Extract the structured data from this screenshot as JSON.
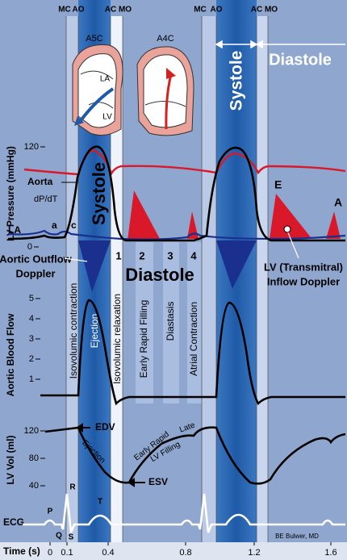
{
  "markers": [
    "MC",
    "AO",
    "AC",
    "MO",
    "MC",
    "AO",
    "AC",
    "MO"
  ],
  "echo": {
    "views": [
      "A5C",
      "A4C"
    ],
    "chambers": [
      "LA",
      "LV"
    ]
  },
  "top_phases": {
    "systole": "Systole",
    "diastole": "Diastole"
  },
  "axes": {
    "pressure": {
      "label": "LV Pressure (mmHg)",
      "ticks": [
        "120",
        "0"
      ]
    },
    "flow": {
      "label": "Aortic Blood Flow",
      "ticks": [
        "5",
        "4",
        "3",
        "2",
        "1"
      ]
    },
    "volume": {
      "label": "LV Vol (ml)",
      "ticks": [
        "120",
        "80",
        "40"
      ]
    },
    "ecg": {
      "label": "ECG"
    },
    "time": {
      "label": "Time (s)",
      "ticks": [
        "0",
        "0.1",
        "0.4",
        "0.8",
        "1.2",
        "1.6"
      ]
    }
  },
  "pressure_labels": {
    "aorta": "Aorta",
    "dpdt": "dP/dT",
    "la": "LA",
    "a": "a",
    "c": "c",
    "systole": "Systole",
    "e_wave": "E",
    "a_wave": "A"
  },
  "phase_numbers": [
    "1",
    "2",
    "3",
    "4"
  ],
  "diastole": "Diastole",
  "doppler": {
    "outflow": [
      "Aortic Outflow",
      "Doppler"
    ],
    "inflow": [
      "LV (Transmitral)",
      "Inflow Doppler"
    ]
  },
  "phases": [
    "Isovolumic contraction",
    "Ejection",
    "Isovolumic relaxation",
    "Early Rapid Filling",
    "Diastasis",
    "Atrial Contraction"
  ],
  "volume_labels": {
    "edv": "EDV",
    "esv": "ESV",
    "ejection": "Ejection",
    "early": "Early Rapid",
    "filling": "LV Filling",
    "late": "Late"
  },
  "ecg_waves": [
    "P",
    "Q",
    "R",
    "S",
    "T"
  ],
  "credit": "BE Bulwer, MD"
}
